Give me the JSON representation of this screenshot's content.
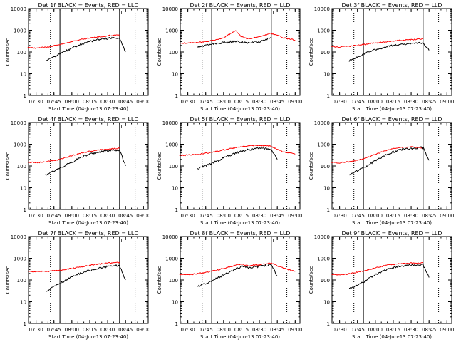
{
  "colors": {
    "events": "#000000",
    "lld": "#ff0000",
    "axis": "#000000",
    "background": "#ffffff"
  },
  "chart_data": [
    {
      "type": "line",
      "title": "Det 1f BLACK = Events, RED = LLD",
      "ylabel": "Counts/sec",
      "xlabel": "Start Time (04-Jun-13 07:23:40)",
      "x_ticks": [
        "07:30",
        "07:45",
        "08:00",
        "08:15",
        "08:30",
        "08:45",
        "09:00"
      ],
      "y_ticks": [
        "1",
        "10",
        "100",
        "1000",
        "10000"
      ],
      "y_scale": "log",
      "ylim": [
        1,
        10000
      ],
      "corner_label": "L",
      "vertical_lines": [
        {
          "time": "07:42",
          "style": "dotted"
        },
        {
          "time": "07:50",
          "style": "solid"
        },
        {
          "time": "08:40",
          "style": "solid"
        },
        {
          "time": "08:53",
          "style": "dotted"
        }
      ],
      "series": [
        {
          "color": "red",
          "x": [
            "07:23",
            "07:30",
            "07:40",
            "07:50",
            "08:00",
            "08:10",
            "08:20",
            "08:30",
            "08:40",
            "08:45",
            "08:50",
            "09:00"
          ],
          "y": [
            160,
            150,
            170,
            220,
            300,
            400,
            480,
            560,
            600,
            null,
            null,
            null
          ]
        },
        {
          "color": "black",
          "x": [
            "07:38",
            "07:42",
            "07:50",
            "08:00",
            "08:10",
            "08:20",
            "08:30",
            "08:40",
            "08:45"
          ],
          "y": [
            40,
            50,
            80,
            150,
            250,
            350,
            420,
            450,
            100
          ]
        }
      ]
    },
    {
      "type": "line",
      "title": "Det 2f BLACK = Events, RED = LLD",
      "ylabel": "Counts/sec",
      "xlabel": "Start Time (04-Jun-13 07:23:40)",
      "x_ticks": [
        "07:30",
        "07:45",
        "08:00",
        "08:15",
        "08:30",
        "08:45",
        "09:00"
      ],
      "y_ticks": [
        "1",
        "10",
        "100",
        "1000",
        "10000"
      ],
      "y_scale": "log",
      "ylim": [
        1,
        10000
      ],
      "corner_label": "L",
      "vertical_lines": [
        {
          "time": "07:42",
          "style": "dotted"
        },
        {
          "time": "07:50",
          "style": "solid"
        },
        {
          "time": "08:40",
          "style": "solid"
        },
        {
          "time": "08:53",
          "style": "dotted"
        }
      ],
      "series": [
        {
          "color": "red",
          "x": [
            "07:23",
            "07:30",
            "07:40",
            "07:50",
            "08:00",
            "08:05",
            "08:10",
            "08:15",
            "08:20",
            "08:30",
            "08:40",
            "08:45",
            "08:50",
            "09:00"
          ],
          "y": [
            250,
            260,
            280,
            330,
            450,
            650,
            1000,
            500,
            400,
            500,
            700,
            600,
            450,
            350
          ]
        },
        {
          "color": "black",
          "x": [
            "07:38",
            "07:45",
            "07:50",
            "08:00",
            "08:10",
            "08:15",
            "08:20",
            "08:30",
            "08:40"
          ],
          "y": [
            180,
            200,
            230,
            270,
            310,
            280,
            260,
            300,
            450
          ]
        }
      ]
    },
    {
      "type": "line",
      "title": "Det 3f BLACK = Events, RED = LLD",
      "ylabel": "Counts/sec",
      "xlabel": "Start Time (04-Jun-13 07:23:40)",
      "x_ticks": [
        "07:30",
        "07:45",
        "08:00",
        "08:15",
        "08:30",
        "08:45",
        "09:00"
      ],
      "y_ticks": [
        "1",
        "10",
        "100",
        "1000",
        "10000"
      ],
      "y_scale": "log",
      "ylim": [
        1,
        10000
      ],
      "corner_label": "L",
      "vertical_lines": [
        {
          "time": "07:42",
          "style": "dotted"
        },
        {
          "time": "07:50",
          "style": "solid"
        },
        {
          "time": "08:40",
          "style": "solid"
        },
        {
          "time": "08:53",
          "style": "dotted"
        }
      ],
      "series": [
        {
          "color": "red",
          "x": [
            "07:23",
            "07:30",
            "07:40",
            "07:50",
            "08:00",
            "08:10",
            "08:20",
            "08:30",
            "08:40",
            "08:45",
            "08:50",
            "09:00"
          ],
          "y": [
            180,
            170,
            190,
            220,
            260,
            300,
            340,
            370,
            400,
            null,
            null,
            null
          ]
        },
        {
          "color": "black",
          "x": [
            "07:38",
            "07:42",
            "07:50",
            "08:00",
            "08:10",
            "08:20",
            "08:30",
            "08:40",
            "08:45"
          ],
          "y": [
            40,
            50,
            80,
            130,
            180,
            220,
            250,
            270,
            120
          ]
        }
      ]
    },
    {
      "type": "line",
      "title": "Det 4f BLACK = Events, RED = LLD",
      "ylabel": "Counts/sec",
      "xlabel": "Start Time (04-Jun-13 07:23:40)",
      "x_ticks": [
        "07:30",
        "07:45",
        "08:00",
        "08:15",
        "08:30",
        "08:45",
        "09:00"
      ],
      "y_ticks": [
        "1",
        "10",
        "100",
        "1000",
        "10000"
      ],
      "y_scale": "log",
      "ylim": [
        1,
        10000
      ],
      "corner_label": "L",
      "vertical_lines": [
        {
          "time": "07:42",
          "style": "dotted"
        },
        {
          "time": "07:50",
          "style": "solid"
        },
        {
          "time": "08:40",
          "style": "solid"
        },
        {
          "time": "08:53",
          "style": "dotted"
        }
      ],
      "series": [
        {
          "color": "red",
          "x": [
            "07:23",
            "07:30",
            "07:40",
            "07:50",
            "08:00",
            "08:10",
            "08:20",
            "08:30",
            "08:40",
            "08:45",
            "08:50",
            "09:00"
          ],
          "y": [
            150,
            140,
            160,
            200,
            300,
            420,
            520,
            600,
            650,
            null,
            null,
            null
          ]
        },
        {
          "color": "black",
          "x": [
            "07:38",
            "07:42",
            "07:50",
            "08:00",
            "08:10",
            "08:20",
            "08:30",
            "08:40",
            "08:45"
          ],
          "y": [
            40,
            50,
            80,
            150,
            280,
            420,
            500,
            550,
            100
          ]
        }
      ]
    },
    {
      "type": "line",
      "title": "Det 5f BLACK = Events, RED = LLD",
      "ylabel": "Counts/sec",
      "xlabel": "Start Time (04-Jun-13 07:23:40)",
      "x_ticks": [
        "07:30",
        "07:45",
        "08:00",
        "08:15",
        "08:30",
        "08:45",
        "09:00"
      ],
      "y_ticks": [
        "1",
        "10",
        "100",
        "1000",
        "10000"
      ],
      "y_scale": "log",
      "ylim": [
        1,
        10000
      ],
      "corner_label": "L",
      "vertical_lines": [
        {
          "time": "07:42",
          "style": "dotted"
        },
        {
          "time": "07:50",
          "style": "solid"
        },
        {
          "time": "08:40",
          "style": "solid"
        },
        {
          "time": "08:53",
          "style": "dotted"
        }
      ],
      "series": [
        {
          "color": "red",
          "x": [
            "07:23",
            "07:30",
            "07:40",
            "07:50",
            "08:00",
            "08:10",
            "08:20",
            "08:30",
            "08:40",
            "08:45",
            "08:50",
            "09:00"
          ],
          "y": [
            300,
            320,
            350,
            420,
            550,
            700,
            850,
            900,
            800,
            600,
            450,
            350
          ]
        },
        {
          "color": "black",
          "x": [
            "07:38",
            "07:42",
            "07:50",
            "08:00",
            "08:10",
            "08:20",
            "08:30",
            "08:40",
            "08:45"
          ],
          "y": [
            70,
            90,
            130,
            230,
            400,
            550,
            650,
            600,
            200
          ]
        }
      ]
    },
    {
      "type": "line",
      "title": "Det 6f BLACK = Events, RED = LLD",
      "ylabel": "Counts/sec",
      "xlabel": "Start Time (04-Jun-13 07:23:40)",
      "x_ticks": [
        "07:30",
        "07:45",
        "08:00",
        "08:15",
        "08:30",
        "08:45",
        "09:00"
      ],
      "y_ticks": [
        "1",
        "10",
        "100",
        "1000",
        "10000"
      ],
      "y_scale": "log",
      "ylim": [
        1,
        10000
      ],
      "corner_label": "L",
      "vertical_lines": [
        {
          "time": "07:42",
          "style": "dotted"
        },
        {
          "time": "07:50",
          "style": "solid"
        },
        {
          "time": "08:40",
          "style": "solid"
        },
        {
          "time": "08:53",
          "style": "dotted"
        }
      ],
      "series": [
        {
          "color": "red",
          "x": [
            "07:23",
            "07:30",
            "07:40",
            "07:50",
            "08:00",
            "08:10",
            "08:20",
            "08:30",
            "08:40",
            "08:45",
            "08:50",
            "09:00"
          ],
          "y": [
            150,
            140,
            160,
            210,
            340,
            550,
            700,
            750,
            650,
            null,
            null,
            null
          ]
        },
        {
          "color": "black",
          "x": [
            "07:38",
            "07:42",
            "07:50",
            "08:00",
            "08:10",
            "08:20",
            "08:30",
            "08:40",
            "08:45"
          ],
          "y": [
            40,
            50,
            80,
            170,
            350,
            550,
            650,
            700,
            180
          ]
        }
      ]
    },
    {
      "type": "line",
      "title": "Det 7f BLACK = Events, RED = LLD",
      "ylabel": "Counts/sec",
      "xlabel": "Start Time (04-Jun-13 07:23:40)",
      "x_ticks": [
        "07:30",
        "07:45",
        "08:00",
        "08:15",
        "08:30",
        "08:45",
        "09:00"
      ],
      "y_ticks": [
        "1",
        "10",
        "100",
        "1000",
        "10000"
      ],
      "y_scale": "log",
      "ylim": [
        1,
        10000
      ],
      "corner_label": "L",
      "vertical_lines": [
        {
          "time": "07:42",
          "style": "dotted"
        },
        {
          "time": "07:50",
          "style": "solid"
        },
        {
          "time": "08:40",
          "style": "solid"
        },
        {
          "time": "08:53",
          "style": "dotted"
        }
      ],
      "series": [
        {
          "color": "red",
          "x": [
            "07:23",
            "07:30",
            "07:40",
            "07:50",
            "08:00",
            "08:10",
            "08:20",
            "08:30",
            "08:40",
            "08:45",
            "08:50",
            "09:00"
          ],
          "y": [
            250,
            240,
            250,
            280,
            340,
            420,
            520,
            600,
            650,
            null,
            null,
            null
          ]
        },
        {
          "color": "black",
          "x": [
            "07:38",
            "07:42",
            "07:50",
            "08:00",
            "08:10",
            "08:20",
            "08:30",
            "08:40",
            "08:45"
          ],
          "y": [
            30,
            40,
            70,
            140,
            230,
            330,
            420,
            480,
            100
          ]
        }
      ]
    },
    {
      "type": "line",
      "title": "Det 8f BLACK = Events, RED = LLD",
      "ylabel": "Counts/sec",
      "xlabel": "Start Time (04-Jun-13 07:23:40)",
      "x_ticks": [
        "07:30",
        "07:45",
        "08:00",
        "08:15",
        "08:30",
        "08:45",
        "09:00"
      ],
      "y_ticks": [
        "1",
        "10",
        "100",
        "1000",
        "10000"
      ],
      "y_scale": "log",
      "ylim": [
        1,
        10000
      ],
      "corner_label": "L",
      "vertical_lines": [
        {
          "time": "07:42",
          "style": "dotted"
        },
        {
          "time": "07:50",
          "style": "solid"
        },
        {
          "time": "08:40",
          "style": "solid"
        },
        {
          "time": "08:53",
          "style": "dotted"
        }
      ],
      "series": [
        {
          "color": "red",
          "x": [
            "07:23",
            "07:30",
            "07:40",
            "07:50",
            "08:00",
            "08:10",
            "08:15",
            "08:20",
            "08:30",
            "08:40",
            "08:45",
            "08:50",
            "09:00"
          ],
          "y": [
            180,
            170,
            200,
            250,
            340,
            480,
            550,
            450,
            500,
            600,
            450,
            350,
            250
          ]
        },
        {
          "color": "black",
          "x": [
            "07:38",
            "07:42",
            "07:50",
            "08:00",
            "08:10",
            "08:15",
            "08:20",
            "08:30",
            "08:40",
            "08:45"
          ],
          "y": [
            50,
            60,
            90,
            170,
            320,
            420,
            380,
            420,
            500,
            150
          ]
        }
      ]
    },
    {
      "type": "line",
      "title": "Det 9f BLACK = Events, RED = LLD",
      "ylabel": "Counts/sec",
      "xlabel": "Start Time (04-Jun-13 07:23:40)",
      "x_ticks": [
        "07:30",
        "07:45",
        "08:00",
        "08:15",
        "08:30",
        "08:45",
        "09:00"
      ],
      "y_ticks": [
        "1",
        "10",
        "100",
        "1000",
        "10000"
      ],
      "y_scale": "log",
      "ylim": [
        1,
        10000
      ],
      "corner_label": "L",
      "vertical_lines": [
        {
          "time": "07:42",
          "style": "dotted"
        },
        {
          "time": "07:50",
          "style": "solid"
        },
        {
          "time": "08:40",
          "style": "solid"
        },
        {
          "time": "08:53",
          "style": "dotted"
        }
      ],
      "series": [
        {
          "color": "red",
          "x": [
            "07:23",
            "07:30",
            "07:40",
            "07:50",
            "08:00",
            "08:10",
            "08:20",
            "08:30",
            "08:40",
            "08:45",
            "08:50",
            "09:00"
          ],
          "y": [
            180,
            170,
            200,
            260,
            360,
            480,
            560,
            600,
            600,
            null,
            null,
            null
          ]
        },
        {
          "color": "black",
          "x": [
            "07:38",
            "07:42",
            "07:50",
            "08:00",
            "08:10",
            "08:20",
            "08:30",
            "08:40",
            "08:45"
          ],
          "y": [
            40,
            50,
            80,
            180,
            320,
            430,
            480,
            500,
            130
          ]
        }
      ]
    }
  ]
}
